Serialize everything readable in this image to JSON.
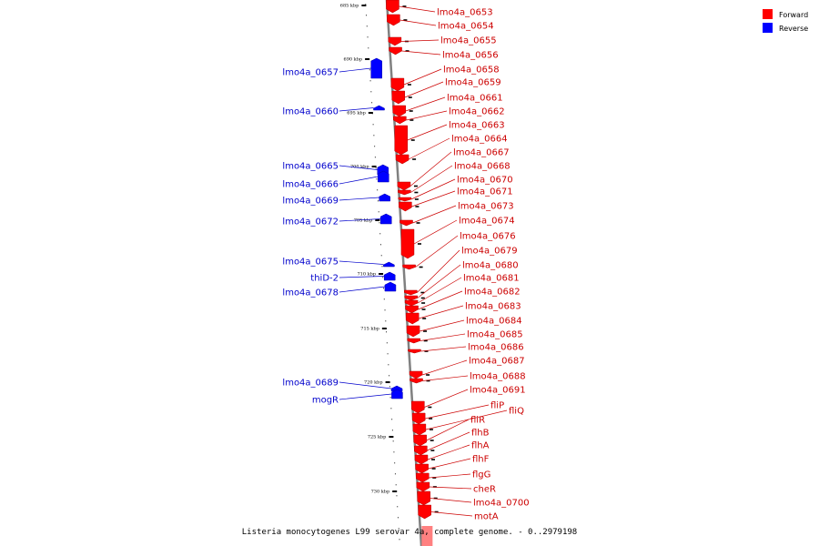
{
  "legend": {
    "items": [
      {
        "label": "Forward",
        "color": "#ff0000"
      },
      {
        "label": "Reverse",
        "color": "#0000ff"
      }
    ]
  },
  "title": "Listeria monocytogenes L99 serovar 4a, complete genome. - 0..2979198",
  "scale_labels": [
    "685 kbp",
    "690 kbp",
    "695 kbp",
    "700 kbp",
    "705 kbp",
    "710 kbp",
    "715 kbp",
    "720 kbp",
    "725 kbp",
    "730 kbp"
  ],
  "reverse_genes": [
    "lmo4a_0657",
    "lmo4a_0660",
    "lmo4a_0665",
    "lmo4a_0666",
    "lmo4a_0669",
    "lmo4a_0672",
    "lmo4a_0675",
    "thiD-2",
    "lmo4a_0678",
    "lmo4a_0689",
    "mogR"
  ],
  "forward_genes": [
    "lmo4a_0653",
    "lmo4a_0654",
    "lmo4a_0655",
    "lmo4a_0656",
    "lmo4a_0658",
    "lmo4a_0659",
    "lmo4a_0661",
    "lmo4a_0662",
    "lmo4a_0663",
    "lmo4a_0664",
    "lmo4a_0667",
    "lmo4a_0668",
    "lmo4a_0670",
    "lmo4a_0671",
    "lmo4a_0673",
    "lmo4a_0674",
    "lmo4a_0676",
    "lmo4a_0679",
    "lmo4a_0680",
    "lmo4a_0681",
    "lmo4a_0682",
    "lmo4a_0683",
    "lmo4a_0684",
    "lmo4a_0685",
    "lmo4a_0686",
    "lmo4a_0687",
    "lmo4a_0688",
    "lmo4a_0691",
    "fliP",
    "fliQ",
    "fliR",
    "flhB",
    "flhA",
    "flhF",
    "flgG",
    "cheR",
    "lmo4a_0700",
    "motA"
  ]
}
